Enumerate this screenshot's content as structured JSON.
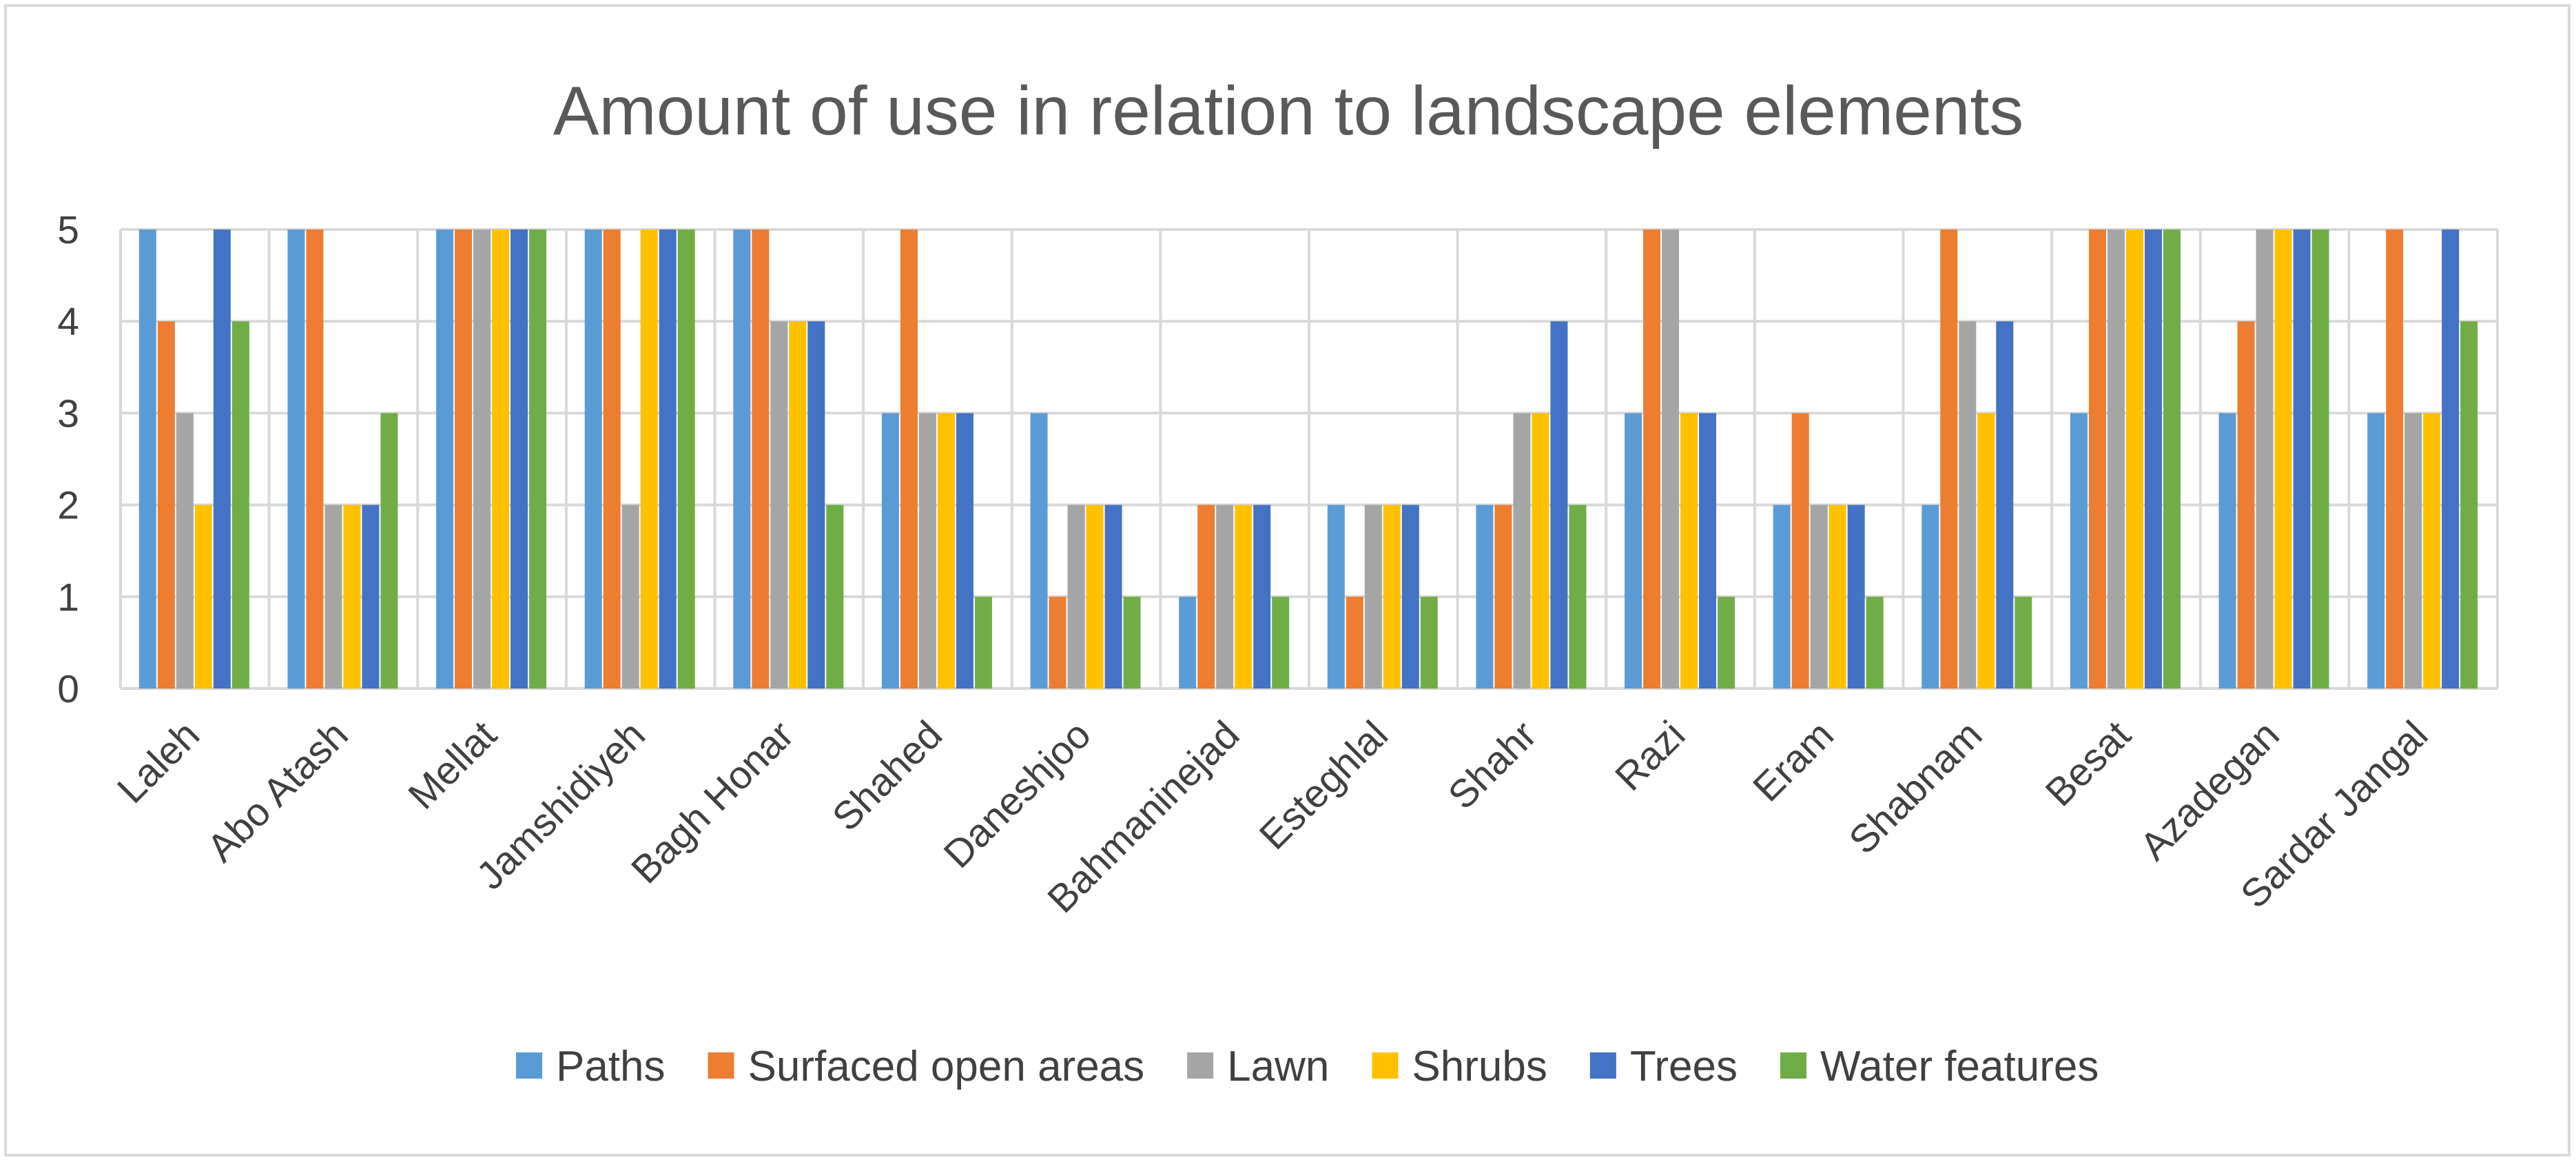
{
  "chart_data": {
    "type": "bar",
    "title": "Amount of use in relation to landscape elements",
    "xlabel": "",
    "ylabel": "",
    "ylim": [
      0,
      5
    ],
    "yticks": [
      0,
      1,
      2,
      3,
      4,
      5
    ],
    "grid": true,
    "legend_position": "bottom",
    "categories": [
      "Laleh",
      "Abo Atash",
      "Mellat",
      "Jamshidiyeh",
      "Bagh Honar",
      "Shahed",
      "Daneshjoo",
      "Bahmaninejad",
      "Esteghlal",
      "Shahr",
      "Razi",
      "Eram",
      "Shabnam",
      "Besat",
      "Azadegan",
      "Sardar Jangal"
    ],
    "series": [
      {
        "name": "Paths",
        "color": "#5b9bd5",
        "values": [
          5,
          5,
          5,
          5,
          5,
          3,
          3,
          1,
          2,
          2,
          3,
          2,
          2,
          3,
          3,
          3
        ]
      },
      {
        "name": "Surfaced open areas",
        "color": "#ed7d31",
        "values": [
          4,
          5,
          5,
          5,
          5,
          5,
          1,
          2,
          1,
          2,
          5,
          3,
          5,
          5,
          4,
          5
        ]
      },
      {
        "name": "Lawn",
        "color": "#a5a5a5",
        "values": [
          3,
          2,
          5,
          2,
          4,
          3,
          2,
          2,
          2,
          3,
          5,
          2,
          4,
          5,
          5,
          3
        ]
      },
      {
        "name": "Shrubs",
        "color": "#ffc000",
        "values": [
          2,
          2,
          5,
          5,
          4,
          3,
          2,
          2,
          2,
          3,
          3,
          2,
          3,
          5,
          5,
          3
        ]
      },
      {
        "name": "Trees",
        "color": "#4472c4",
        "values": [
          5,
          2,
          5,
          5,
          4,
          3,
          2,
          2,
          2,
          4,
          3,
          2,
          4,
          5,
          5,
          5
        ]
      },
      {
        "name": "Water features",
        "color": "#70ad47",
        "values": [
          4,
          3,
          5,
          5,
          2,
          1,
          1,
          1,
          1,
          2,
          1,
          1,
          1,
          5,
          5,
          4
        ]
      }
    ]
  }
}
